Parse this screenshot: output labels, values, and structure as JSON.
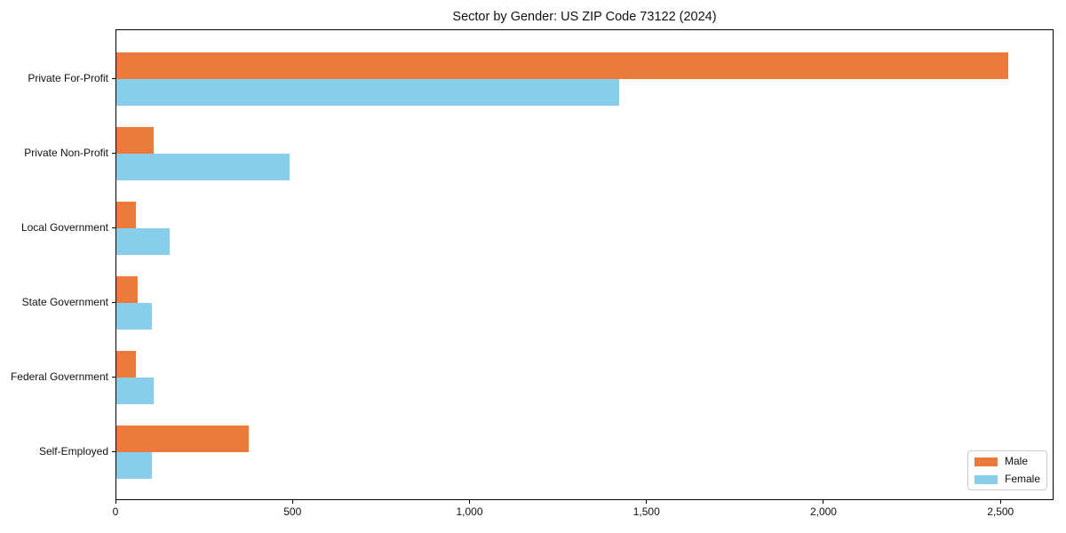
{
  "figure": {
    "background": "#ffffff"
  },
  "chart_data": {
    "type": "bar",
    "orientation": "horizontal",
    "title": "Sector by Gender: US ZIP Code 73122 (2024)",
    "categories": [
      "Private For-Profit",
      "Private Non-Profit",
      "Local Government",
      "State Government",
      "Federal Government",
      "Self-Employed"
    ],
    "series": [
      {
        "name": "Male",
        "color": "#ec7a3d",
        "values": [
          2520,
          105,
          55,
          60,
          55,
          375
        ]
      },
      {
        "name": "Female",
        "color": "#87ceeb",
        "values": [
          1420,
          490,
          150,
          100,
          105,
          100
        ]
      }
    ],
    "xlabel": "",
    "ylabel": "",
    "xlim": [
      0,
      2650
    ],
    "xticks": [
      0,
      500,
      1000,
      1500,
      2000,
      2500
    ],
    "xtick_labels": [
      "0",
      "500",
      "1,000",
      "1,500",
      "2,000",
      "2,500"
    ],
    "grid": false,
    "legend": {
      "position": "lower-right"
    }
  }
}
